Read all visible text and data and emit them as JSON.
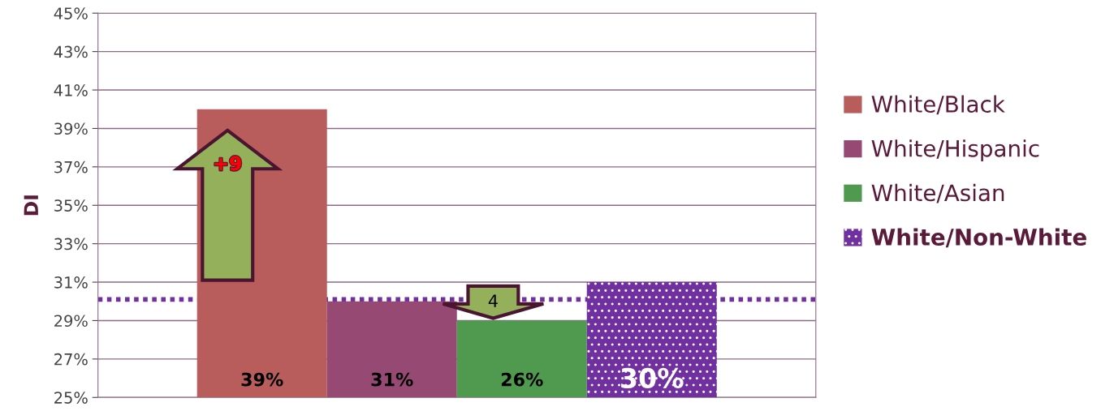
{
  "chart_data": {
    "type": "bar",
    "ylabel": "DI",
    "categories": [
      null
    ],
    "series": [
      {
        "name": "White/Black",
        "color": "#b85c5c",
        "values": [
          40
        ]
      },
      {
        "name": "White/Hispanic",
        "color": "#964a73",
        "values": [
          30
        ]
      },
      {
        "name": "White/Asian",
        "color": "#4f9a4f",
        "values": [
          29
        ]
      },
      {
        "name": "White/Non-White",
        "color": "#7030a0",
        "values": [
          31
        ]
      }
    ],
    "ylim": [
      25,
      45
    ],
    "yticks": [
      {
        "value": 25,
        "label": "25%"
      },
      {
        "value": 27,
        "label": "27%"
      },
      {
        "value": 29,
        "label": "29%"
      },
      {
        "value": 31,
        "label": "31%"
      },
      {
        "value": 33,
        "label": "33%"
      },
      {
        "value": 35,
        "label": "35%"
      },
      {
        "value": 37,
        "label": "37%"
      },
      {
        "value": 39,
        "label": "39%"
      },
      {
        "value": 41,
        "label": "41%"
      },
      {
        "value": 43,
        "label": "43%"
      },
      {
        "value": 45,
        "label": "45%"
      }
    ],
    "ref_lines": [
      {
        "axis": "y",
        "value": 30.1,
        "color": "#7030a0",
        "line_style": "dotted"
      }
    ],
    "annotations": [
      "+9",
      "4",
      "39%",
      "31%",
      "26%",
      "30%"
    ],
    "grid": "y",
    "legend": "right"
  }
}
